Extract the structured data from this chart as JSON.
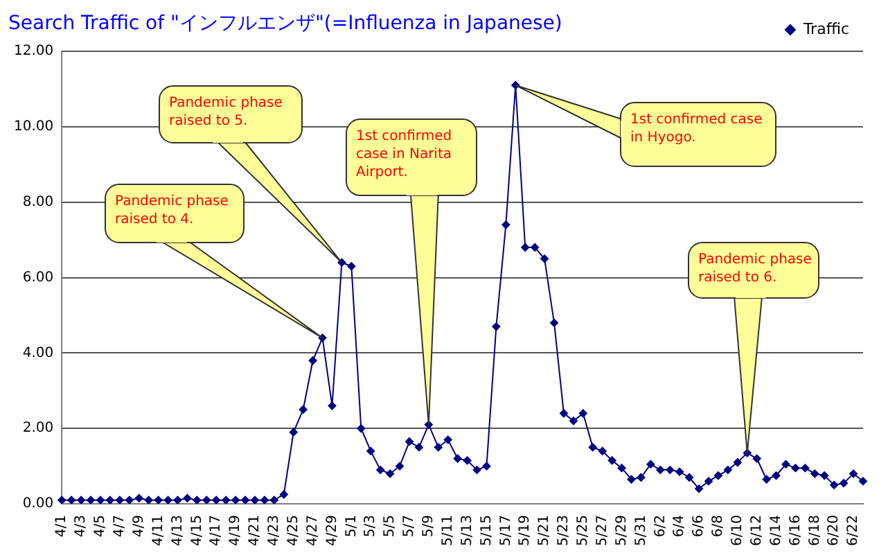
{
  "chart_data": {
    "type": "line",
    "title": "Search Traffic of \"インフルエンザ\"(=Influenza in Japanese)",
    "categories": [
      "4/1",
      null,
      "4/3",
      null,
      "4/5",
      null,
      "4/7",
      null,
      "4/9",
      null,
      "4/11",
      null,
      "4/13",
      null,
      "4/15",
      null,
      "4/17",
      null,
      "4/19",
      null,
      "4/21",
      null,
      "4/23",
      null,
      "4/25",
      null,
      "4/27",
      null,
      "4/29",
      null,
      "5/1",
      null,
      "5/3",
      null,
      "5/5",
      null,
      "5/7",
      null,
      "5/9",
      null,
      "5/11",
      null,
      "5/13",
      null,
      "5/15",
      null,
      "5/17",
      null,
      "5/19",
      null,
      "5/21",
      null,
      "5/23",
      null,
      "5/25",
      null,
      "5/27",
      null,
      "5/29",
      null,
      "5/31",
      null,
      "6/2",
      null,
      "6/4",
      null,
      "6/6",
      null,
      "6/8",
      null,
      "6/10",
      null,
      "6/12",
      null,
      "6/14",
      null,
      "6/16",
      null,
      "6/18",
      null,
      "6/20",
      null,
      "6/22",
      null
    ],
    "series": [
      {
        "name": "Traffic",
        "color": "#000080",
        "values": [
          0.1,
          0.1,
          0.1,
          0.1,
          0.1,
          0.1,
          0.1,
          0.1,
          0.15,
          0.1,
          0.1,
          0.1,
          0.1,
          0.15,
          0.1,
          0.1,
          0.1,
          0.1,
          0.1,
          0.1,
          0.1,
          0.1,
          0.1,
          0.25,
          1.9,
          2.5,
          3.8,
          4.4,
          2.6,
          6.4,
          6.3,
          2.0,
          1.4,
          0.9,
          0.8,
          1.0,
          1.65,
          1.5,
          2.1,
          1.5,
          1.7,
          1.2,
          1.15,
          0.9,
          1.0,
          4.7,
          7.4,
          11.1,
          6.8,
          6.8,
          6.5,
          4.8,
          2.4,
          2.2,
          2.4,
          1.5,
          1.4,
          1.15,
          0.95,
          0.65,
          0.7,
          1.05,
          0.9,
          0.9,
          0.85,
          0.7,
          0.4,
          0.6,
          0.75,
          0.9,
          1.1,
          1.35,
          1.2,
          0.65,
          0.75,
          1.05,
          0.95,
          0.95,
          0.8,
          0.75,
          0.5,
          0.55,
          0.8,
          0.6
        ]
      }
    ],
    "ylim": [
      0,
      12
    ],
    "yticks": [
      {
        "value": 0,
        "label": "0.00"
      },
      {
        "value": 2,
        "label": "2.00"
      },
      {
        "value": 4,
        "label": "4.00"
      },
      {
        "value": 6,
        "label": "6.00"
      },
      {
        "value": 8,
        "label": "8.00"
      },
      {
        "value": 10,
        "label": "10.00"
      },
      {
        "value": 12,
        "label": "12.00"
      }
    ],
    "grid": "y",
    "legend": "top right",
    "marker": "diamond",
    "line_style": "solid",
    "annotations": [
      "Pandemic phase raised to 4.",
      "Pandemic phase raised to 5.",
      {
        "text": "1st confirmed case in Narita Airport.",
        "x": "5/9",
        "y": 2.1
      },
      "1st confirmed case in Hyogo.",
      "Pandemic phase raised to 6."
    ]
  }
}
